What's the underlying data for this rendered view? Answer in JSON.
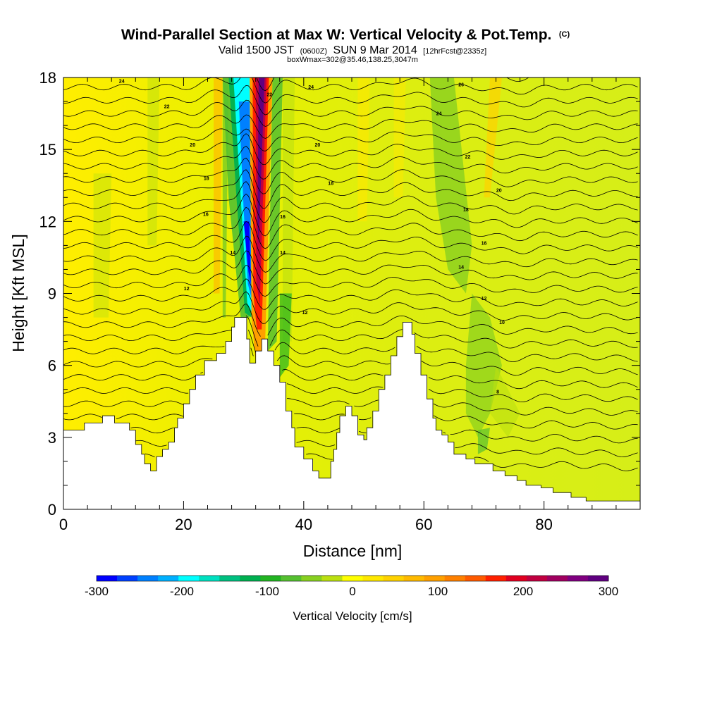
{
  "title": {
    "main": "Wind-Parallel Section at Max W: Vertical Velocity & Pot.Temp.",
    "main_unit": "(C)",
    "valid_prefix": "Valid 1500 JST",
    "valid_utc": "(0600Z)",
    "valid_date": "SUN 9 Mar 2014",
    "forecast": "[12hrFcst@2335z]",
    "box": "boxWmax=302@35.46,138.25,3047m"
  },
  "chart_data": {
    "type": "heatmap",
    "xlabel": "Distance [nm]",
    "ylabel": "Height [Kft MSL]",
    "xlim": [
      0,
      96
    ],
    "ylim": [
      0,
      18
    ],
    "xticks": [
      0,
      20,
      40,
      60,
      80
    ],
    "yticks": [
      0,
      3,
      6,
      9,
      12,
      15,
      18
    ],
    "xtick_labels": [
      "0",
      "20",
      "40",
      "60",
      "80"
    ],
    "ytick_labels": [
      "0",
      "3",
      "6",
      "9",
      "12",
      "15",
      "18"
    ],
    "terrain": [
      [
        0,
        3.3
      ],
      [
        3.5,
        3.3
      ],
      [
        3.5,
        3.6
      ],
      [
        6.5,
        3.6
      ],
      [
        6.5,
        3.9
      ],
      [
        8.5,
        3.9
      ],
      [
        8.5,
        3.6
      ],
      [
        11,
        3.6
      ],
      [
        11,
        3.3
      ],
      [
        12,
        3.3
      ],
      [
        12,
        2.7
      ],
      [
        13,
        2.7
      ],
      [
        13,
        2.3
      ],
      [
        13.5,
        2.3
      ],
      [
        13.5,
        1.9
      ],
      [
        14.5,
        1.9
      ],
      [
        14.5,
        1.6
      ],
      [
        15.5,
        1.6
      ],
      [
        15.5,
        2.2
      ],
      [
        16.5,
        2.2
      ],
      [
        16.5,
        2.5
      ],
      [
        17.5,
        2.5
      ],
      [
        17.5,
        2.8
      ],
      [
        18.5,
        2.8
      ],
      [
        18.5,
        3.4
      ],
      [
        19,
        3.4
      ],
      [
        19,
        3.8
      ],
      [
        20,
        3.8
      ],
      [
        20,
        4.4
      ],
      [
        21,
        4.4
      ],
      [
        21,
        5.0
      ],
      [
        22,
        5.0
      ],
      [
        22,
        5.6
      ],
      [
        23.5,
        5.6
      ],
      [
        23.5,
        6.2
      ],
      [
        25.5,
        6.2
      ],
      [
        25.5,
        6.5
      ],
      [
        27,
        6.5
      ],
      [
        27,
        7.0
      ],
      [
        28,
        7.0
      ],
      [
        28,
        7.6
      ],
      [
        28.5,
        7.6
      ],
      [
        28.5,
        8.0
      ],
      [
        30.5,
        8.0
      ],
      [
        30.5,
        7.1
      ],
      [
        31,
        7.1
      ],
      [
        31,
        6.1
      ],
      [
        32,
        6.1
      ],
      [
        32,
        6.6
      ],
      [
        33,
        6.6
      ],
      [
        33,
        7.1
      ],
      [
        34,
        7.1
      ],
      [
        34,
        6.6
      ],
      [
        35,
        6.6
      ],
      [
        35,
        6.0
      ],
      [
        36,
        6.0
      ],
      [
        36,
        5.3
      ],
      [
        37,
        5.3
      ],
      [
        37,
        4.1
      ],
      [
        38,
        4.1
      ],
      [
        38,
        3.4
      ],
      [
        38.5,
        3.4
      ],
      [
        38.5,
        2.6
      ],
      [
        40,
        2.6
      ],
      [
        40,
        2.1
      ],
      [
        41.5,
        2.1
      ],
      [
        41.5,
        1.6
      ],
      [
        42.5,
        1.6
      ],
      [
        42.5,
        1.3
      ],
      [
        44.5,
        1.3
      ],
      [
        44.5,
        2.0
      ],
      [
        45,
        2.0
      ],
      [
        45,
        2.5
      ],
      [
        45.5,
        2.5
      ],
      [
        45.5,
        3.2
      ],
      [
        46,
        3.2
      ],
      [
        46,
        3.9
      ],
      [
        47,
        3.9
      ],
      [
        47,
        4.3
      ],
      [
        48,
        4.3
      ],
      [
        48,
        3.9
      ],
      [
        49,
        3.9
      ],
      [
        49,
        3.1
      ],
      [
        50,
        3.1
      ],
      [
        50,
        2.9
      ],
      [
        50.5,
        2.9
      ],
      [
        50.5,
        3.4
      ],
      [
        51.5,
        3.4
      ],
      [
        51.5,
        4.1
      ],
      [
        52.5,
        4.1
      ],
      [
        52.5,
        5.0
      ],
      [
        53.5,
        5.0
      ],
      [
        53.5,
        5.6
      ],
      [
        54.5,
        5.6
      ],
      [
        54.5,
        6.4
      ],
      [
        55.5,
        6.4
      ],
      [
        55.5,
        7.2
      ],
      [
        56.5,
        7.2
      ],
      [
        56.5,
        7.8
      ],
      [
        58,
        7.8
      ],
      [
        58,
        7.3
      ],
      [
        58.5,
        7.3
      ],
      [
        58.5,
        6.5
      ],
      [
        59.5,
        6.5
      ],
      [
        59.5,
        5.6
      ],
      [
        60.5,
        5.6
      ],
      [
        60.5,
        4.6
      ],
      [
        61.5,
        4.6
      ],
      [
        61.5,
        3.8
      ],
      [
        62,
        3.8
      ],
      [
        62,
        3.3
      ],
      [
        63,
        3.3
      ],
      [
        63,
        3.1
      ],
      [
        64,
        3.1
      ],
      [
        64,
        2.8
      ],
      [
        65,
        2.8
      ],
      [
        65,
        2.3
      ],
      [
        67,
        2.3
      ],
      [
        67,
        2.1
      ],
      [
        68.5,
        2.1
      ],
      [
        68.5,
        1.9
      ],
      [
        71.5,
        1.9
      ],
      [
        71.5,
        1.6
      ],
      [
        73.5,
        1.6
      ],
      [
        73.5,
        1.4
      ],
      [
        75.5,
        1.4
      ],
      [
        75.5,
        1.2
      ],
      [
        77,
        1.2
      ],
      [
        77,
        1.0
      ],
      [
        79.5,
        1.0
      ],
      [
        79.5,
        0.9
      ],
      [
        81.5,
        0.9
      ],
      [
        81.5,
        0.7
      ],
      [
        84.5,
        0.7
      ],
      [
        84.5,
        0.5
      ],
      [
        87,
        0.5
      ],
      [
        87,
        0.35
      ],
      [
        96,
        0.35
      ]
    ],
    "contour_labels": [
      {
        "text": "24",
        "x": 9.7,
        "y": 17.85
      },
      {
        "text": "22",
        "x": 17.2,
        "y": 16.8
      },
      {
        "text": "20",
        "x": 21.5,
        "y": 15.2
      },
      {
        "text": "18",
        "x": 23.8,
        "y": 13.8
      },
      {
        "text": "16",
        "x": 23.7,
        "y": 12.3
      },
      {
        "text": "14",
        "x": 28.2,
        "y": 10.7
      },
      {
        "text": "12",
        "x": 20.5,
        "y": 9.2
      },
      {
        "text": "22",
        "x": 34.3,
        "y": 17.3
      },
      {
        "text": "24",
        "x": 41.2,
        "y": 17.6
      },
      {
        "text": "20",
        "x": 42.3,
        "y": 15.2
      },
      {
        "text": "18",
        "x": 44.5,
        "y": 13.6
      },
      {
        "text": "16",
        "x": 36.5,
        "y": 12.2
      },
      {
        "text": "14",
        "x": 36.5,
        "y": 10.7
      },
      {
        "text": "12",
        "x": 40.2,
        "y": 8.2
      },
      {
        "text": "26",
        "x": 66.2,
        "y": 17.7
      },
      {
        "text": "24",
        "x": 62.5,
        "y": 16.5
      },
      {
        "text": "22",
        "x": 67.3,
        "y": 14.7
      },
      {
        "text": "20",
        "x": 72.5,
        "y": 13.3
      },
      {
        "text": "18",
        "x": 67.0,
        "y": 12.5
      },
      {
        "text": "16",
        "x": 70.0,
        "y": 11.1
      },
      {
        "text": "14",
        "x": 66.2,
        "y": 10.1
      },
      {
        "text": "12",
        "x": 70.0,
        "y": 8.8
      },
      {
        "text": "10",
        "x": 73.0,
        "y": 7.8
      },
      {
        "text": "8",
        "x": 72.3,
        "y": 4.9
      }
    ],
    "colorbar": {
      "label": "Vertical Velocity [cm/s]",
      "min": -300,
      "max": 300,
      "tick_values": [
        -300,
        -200,
        -100,
        0,
        100,
        200,
        300
      ],
      "tick_labels": [
        "-300",
        "-200",
        "-100",
        "0",
        "100",
        "200",
        "300"
      ],
      "colors": [
        "#0000ff",
        "#0040ff",
        "#0080ff",
        "#00b0ff",
        "#00ffff",
        "#00e0c0",
        "#00c080",
        "#00b050",
        "#22b422",
        "#55c030",
        "#88d020",
        "#bbe010",
        "#ffff00",
        "#ffe800",
        "#ffd200",
        "#ffba00",
        "#ffa000",
        "#ff8000",
        "#ff5a00",
        "#ff2000",
        "#e00020",
        "#c00040",
        "#a00060",
        "#800080",
        "#600080"
      ]
    }
  }
}
